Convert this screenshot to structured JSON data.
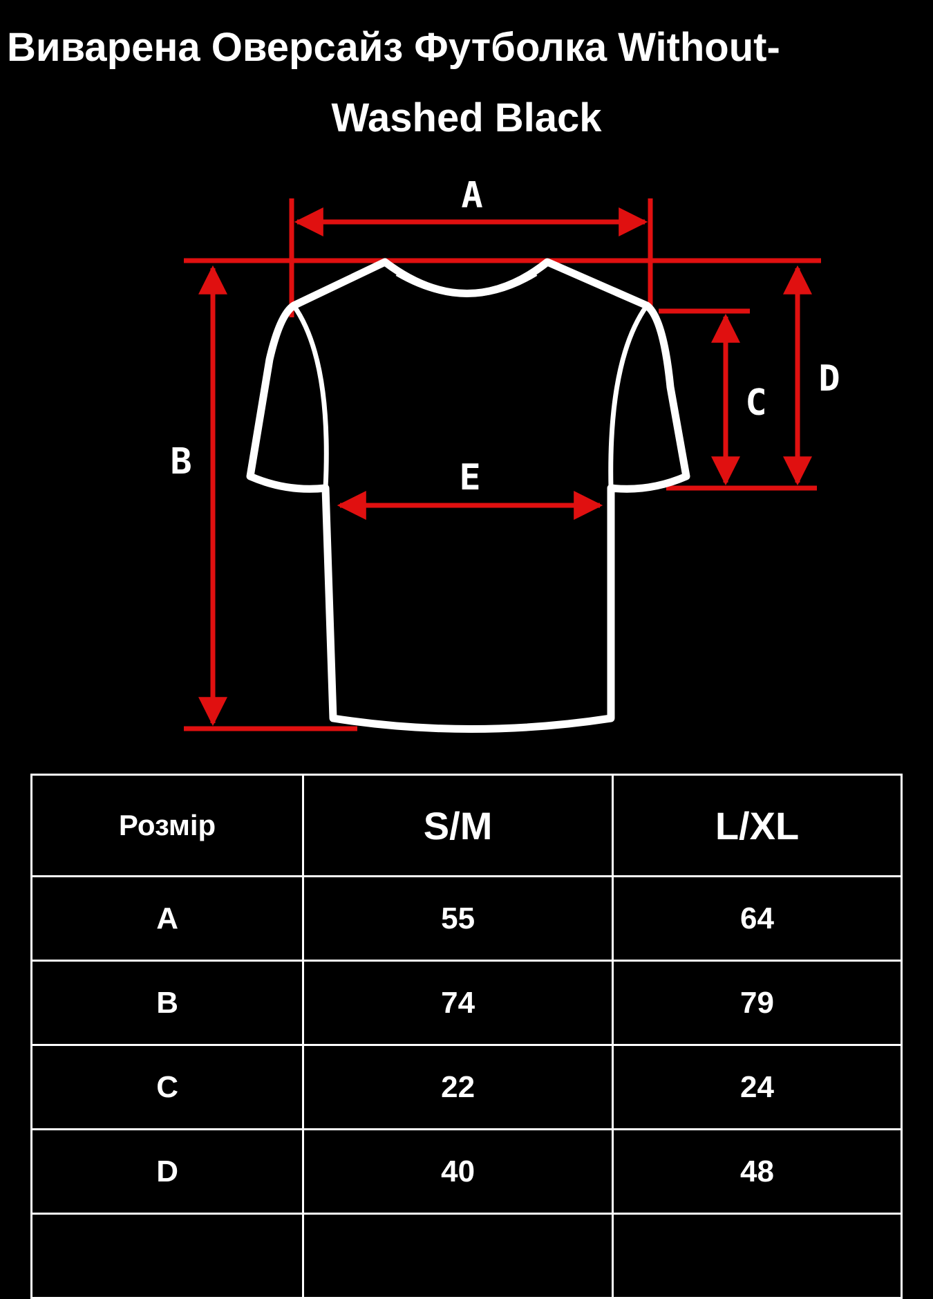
{
  "title_line1": "Виварена Оверсайз Футболка Without-",
  "title_line2": "Washed Black",
  "diagram": {
    "labels": {
      "a": "A",
      "b": "B",
      "c": "C",
      "d": "D",
      "e": "E"
    },
    "colors": {
      "arrows": "#e01010",
      "shirt_outline": "#ffffff",
      "background": "#000000"
    }
  },
  "table": {
    "headers": [
      "Розмір",
      "S/M",
      "L/XL"
    ],
    "rows": [
      [
        "A",
        "55",
        "64"
      ],
      [
        "B",
        "74",
        "79"
      ],
      [
        "C",
        "22",
        "24"
      ],
      [
        "D",
        "40",
        "48"
      ],
      [
        "",
        "",
        ""
      ]
    ]
  }
}
